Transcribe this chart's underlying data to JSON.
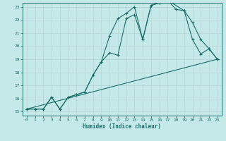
{
  "xlabel": "Humidex (Indice chaleur)",
  "bg_color": "#c5e8e8",
  "grid_color": "#b8d8d8",
  "line_color": "#1a6e6a",
  "xlim": [
    0,
    23
  ],
  "ylim": [
    15,
    23
  ],
  "xticks": [
    0,
    1,
    2,
    3,
    4,
    5,
    6,
    7,
    8,
    9,
    10,
    11,
    12,
    13,
    14,
    15,
    16,
    17,
    18,
    19,
    20,
    21,
    22,
    23
  ],
  "yticks": [
    15,
    16,
    17,
    18,
    19,
    20,
    21,
    22,
    23
  ],
  "line1_x": [
    0,
    1,
    2,
    3,
    4,
    5,
    6,
    7,
    8,
    9,
    10,
    11,
    12,
    13,
    14,
    15,
    16,
    17,
    18,
    19,
    20,
    21,
    22,
    23
  ],
  "line1_y": [
    15.2,
    15.2,
    15.2,
    16.1,
    15.2,
    16.1,
    16.3,
    16.5,
    17.8,
    18.8,
    19.5,
    19.3,
    22.1,
    22.4,
    20.5,
    23.1,
    23.3,
    23.5,
    22.8,
    22.7,
    20.5,
    19.4,
    19.8,
    19.0
  ],
  "line2_x": [
    0,
    1,
    2,
    3,
    4,
    5,
    6,
    7,
    8,
    9,
    10,
    11,
    12,
    13,
    14,
    15,
    16,
    17,
    19,
    20,
    21,
    22,
    23
  ],
  "line2_y": [
    15.2,
    15.2,
    15.2,
    16.1,
    15.2,
    16.1,
    16.3,
    16.5,
    17.8,
    18.8,
    20.8,
    22.1,
    22.5,
    23.0,
    20.5,
    23.1,
    23.3,
    23.5,
    22.7,
    21.8,
    20.5,
    19.8,
    19.0
  ],
  "line3_x": [
    0,
    23
  ],
  "line3_y": [
    15.2,
    19.0
  ]
}
